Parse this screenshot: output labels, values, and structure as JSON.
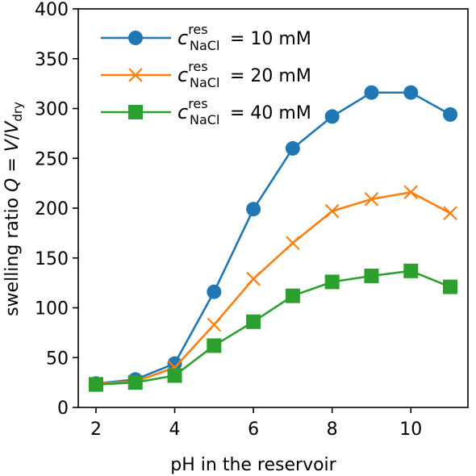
{
  "chart_data": {
    "type": "line",
    "xlabel": "pH in the reservoir",
    "ylabel": {
      "prefix": "swelling ratio ",
      "q": "Q",
      "eq": " = ",
      "v": "V",
      "slash": "/",
      "vd": "V",
      "sub": "dry"
    },
    "xlim": [
      1.55,
      11.45
    ],
    "ylim": [
      0,
      400
    ],
    "xticks": [
      2,
      4,
      6,
      8,
      10
    ],
    "yticks": [
      0,
      50,
      100,
      150,
      200,
      250,
      300,
      350,
      400
    ],
    "grid": false,
    "legend_position": "top-left",
    "x": [
      2,
      3,
      4,
      5,
      6,
      7,
      8,
      9,
      10,
      11
    ],
    "series": [
      {
        "legend": {
          "c": "c",
          "sup": "res",
          "sub": "NaCl",
          "rest": " = 10 mM"
        },
        "color": "#1f77b4",
        "marker": "circle",
        "values": [
          24,
          28,
          44,
          116,
          199,
          260,
          292,
          316,
          316,
          294
        ]
      },
      {
        "legend": {
          "c": "c",
          "sup": "res",
          "sub": "NaCl",
          "rest": " = 20 mM"
        },
        "color": "#ff7f0e",
        "marker": "x",
        "values": [
          24,
          26,
          40,
          83,
          129,
          165,
          197,
          209,
          216,
          195
        ]
      },
      {
        "legend": {
          "c": "c",
          "sup": "res",
          "sub": "NaCl",
          "rest": " = 40 mM"
        },
        "color": "#2ca02c",
        "marker": "square",
        "values": [
          23,
          25,
          32,
          62,
          86,
          112,
          126,
          132,
          137,
          121
        ]
      }
    ]
  }
}
